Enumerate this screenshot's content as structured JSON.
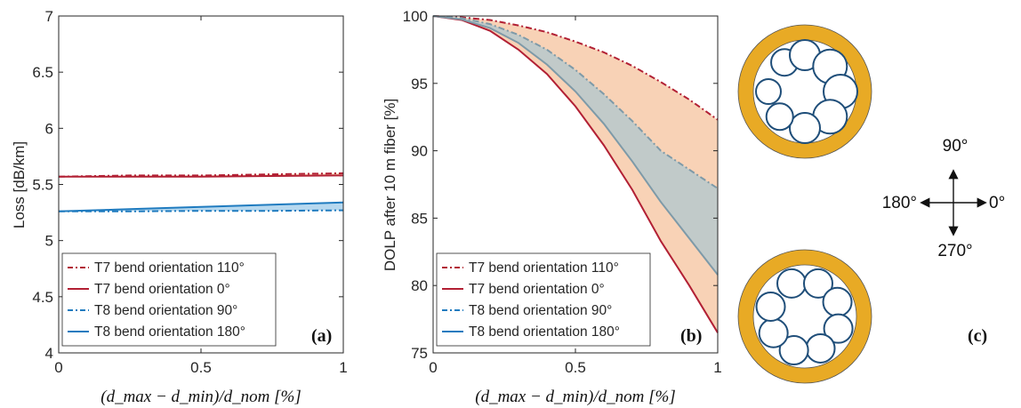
{
  "colors": {
    "red": "#b22034",
    "blue": "#1f7bbf",
    "orange_fill": "#f7caa9",
    "blue_fill": "#a9d1ec",
    "slate_fill": "#b7c9cc",
    "slate_line": "#7e9aa8",
    "gold": "#e8aa25",
    "tube": "#1f4e79"
  },
  "chart_data": [
    {
      "type": "line",
      "panel_label": "(a)",
      "ylabel": "Loss [dB/km]",
      "xlabel": "(d_max − d_min)/d_nom [%]",
      "xlim": [
        0,
        1
      ],
      "ylim": [
        4,
        7
      ],
      "xticks": [
        "0",
        "0.5",
        "1"
      ],
      "yticks": [
        "4",
        "4.5",
        "5",
        "5.5",
        "6",
        "6.5",
        "7"
      ],
      "legend_position": "bottom-left",
      "series": [
        {
          "name": "T7 bend orientation 110°",
          "style": "dashdot",
          "color": "red",
          "x": [
            0,
            0.25,
            0.5,
            0.75,
            1
          ],
          "y": [
            5.57,
            5.58,
            5.58,
            5.59,
            5.6
          ]
        },
        {
          "name": "T7 bend orientation 0°",
          "style": "solid",
          "color": "red",
          "x": [
            0,
            0.25,
            0.5,
            0.75,
            1
          ],
          "y": [
            5.57,
            5.57,
            5.57,
            5.575,
            5.58
          ]
        },
        {
          "name": "T8 bend orientation 90°",
          "style": "dashdot",
          "color": "blue",
          "x": [
            0,
            0.25,
            0.5,
            0.75,
            1
          ],
          "y": [
            5.26,
            5.26,
            5.265,
            5.265,
            5.27
          ]
        },
        {
          "name": "T8 bend orientation 180°",
          "style": "solid",
          "color": "blue",
          "x": [
            0,
            0.25,
            0.5,
            0.75,
            1
          ],
          "y": [
            5.26,
            5.28,
            5.3,
            5.32,
            5.34
          ]
        }
      ],
      "fills": [
        {
          "between": [
            0,
            1
          ],
          "color": "orange_fill"
        },
        {
          "between": [
            2,
            3
          ],
          "color": "blue_fill"
        }
      ]
    },
    {
      "type": "line",
      "panel_label": "(b)",
      "ylabel": "DOLP after 10 m fiber [%]",
      "xlabel": "(d_max − d_min)/d_nom [%]",
      "xlim": [
        0,
        1
      ],
      "ylim": [
        75,
        100
      ],
      "xticks": [
        "0",
        "0.5",
        "1"
      ],
      "yticks": [
        "75",
        "80",
        "85",
        "90",
        "95",
        "100"
      ],
      "legend_position": "bottom-left",
      "series": [
        {
          "name": "T7 bend orientation 110°",
          "style": "dashdot",
          "color": "red",
          "x": [
            0,
            0.1,
            0.2,
            0.3,
            0.4,
            0.5,
            0.6,
            0.7,
            0.8,
            0.9,
            1.0
          ],
          "y": [
            100,
            99.9,
            99.7,
            99.3,
            98.8,
            98.1,
            97.3,
            96.3,
            95.1,
            93.8,
            92.3
          ]
        },
        {
          "name": "T7 bend orientation 0°",
          "style": "solid",
          "color": "red",
          "x": [
            0,
            0.1,
            0.2,
            0.3,
            0.4,
            0.5,
            0.6,
            0.7,
            0.8,
            0.9,
            1.0
          ],
          "y": [
            100,
            99.7,
            98.9,
            97.5,
            95.7,
            93.3,
            90.4,
            87.1,
            83.3,
            80.0,
            76.5
          ]
        },
        {
          "name": "T8 bend orientation 90°",
          "style": "dashdot",
          "color": "slate",
          "x": [
            0,
            0.1,
            0.2,
            0.3,
            0.4,
            0.5,
            0.6,
            0.7,
            0.8,
            0.9,
            1.0
          ],
          "y": [
            100,
            99.85,
            99.4,
            98.6,
            97.5,
            96.0,
            94.2,
            92.2,
            90.0,
            88.6,
            87.2
          ]
        },
        {
          "name": "T8 bend orientation 180°",
          "style": "solid",
          "color": "slate",
          "x": [
            0,
            0.1,
            0.2,
            0.3,
            0.4,
            0.5,
            0.6,
            0.7,
            0.8,
            0.9,
            1.0
          ],
          "y": [
            100,
            99.75,
            99.1,
            98.0,
            96.4,
            94.4,
            92.0,
            89.2,
            86.2,
            83.5,
            80.8
          ]
        }
      ],
      "fills": [
        {
          "between": [
            0,
            1
          ],
          "color": "orange_fill"
        },
        {
          "between": [
            2,
            3
          ],
          "color": "slate_fill"
        }
      ]
    }
  ],
  "schematic": {
    "panel_label": "(c)",
    "compass": {
      "up": "90°",
      "left": "180°",
      "right": "0°",
      "down": "270°"
    }
  }
}
